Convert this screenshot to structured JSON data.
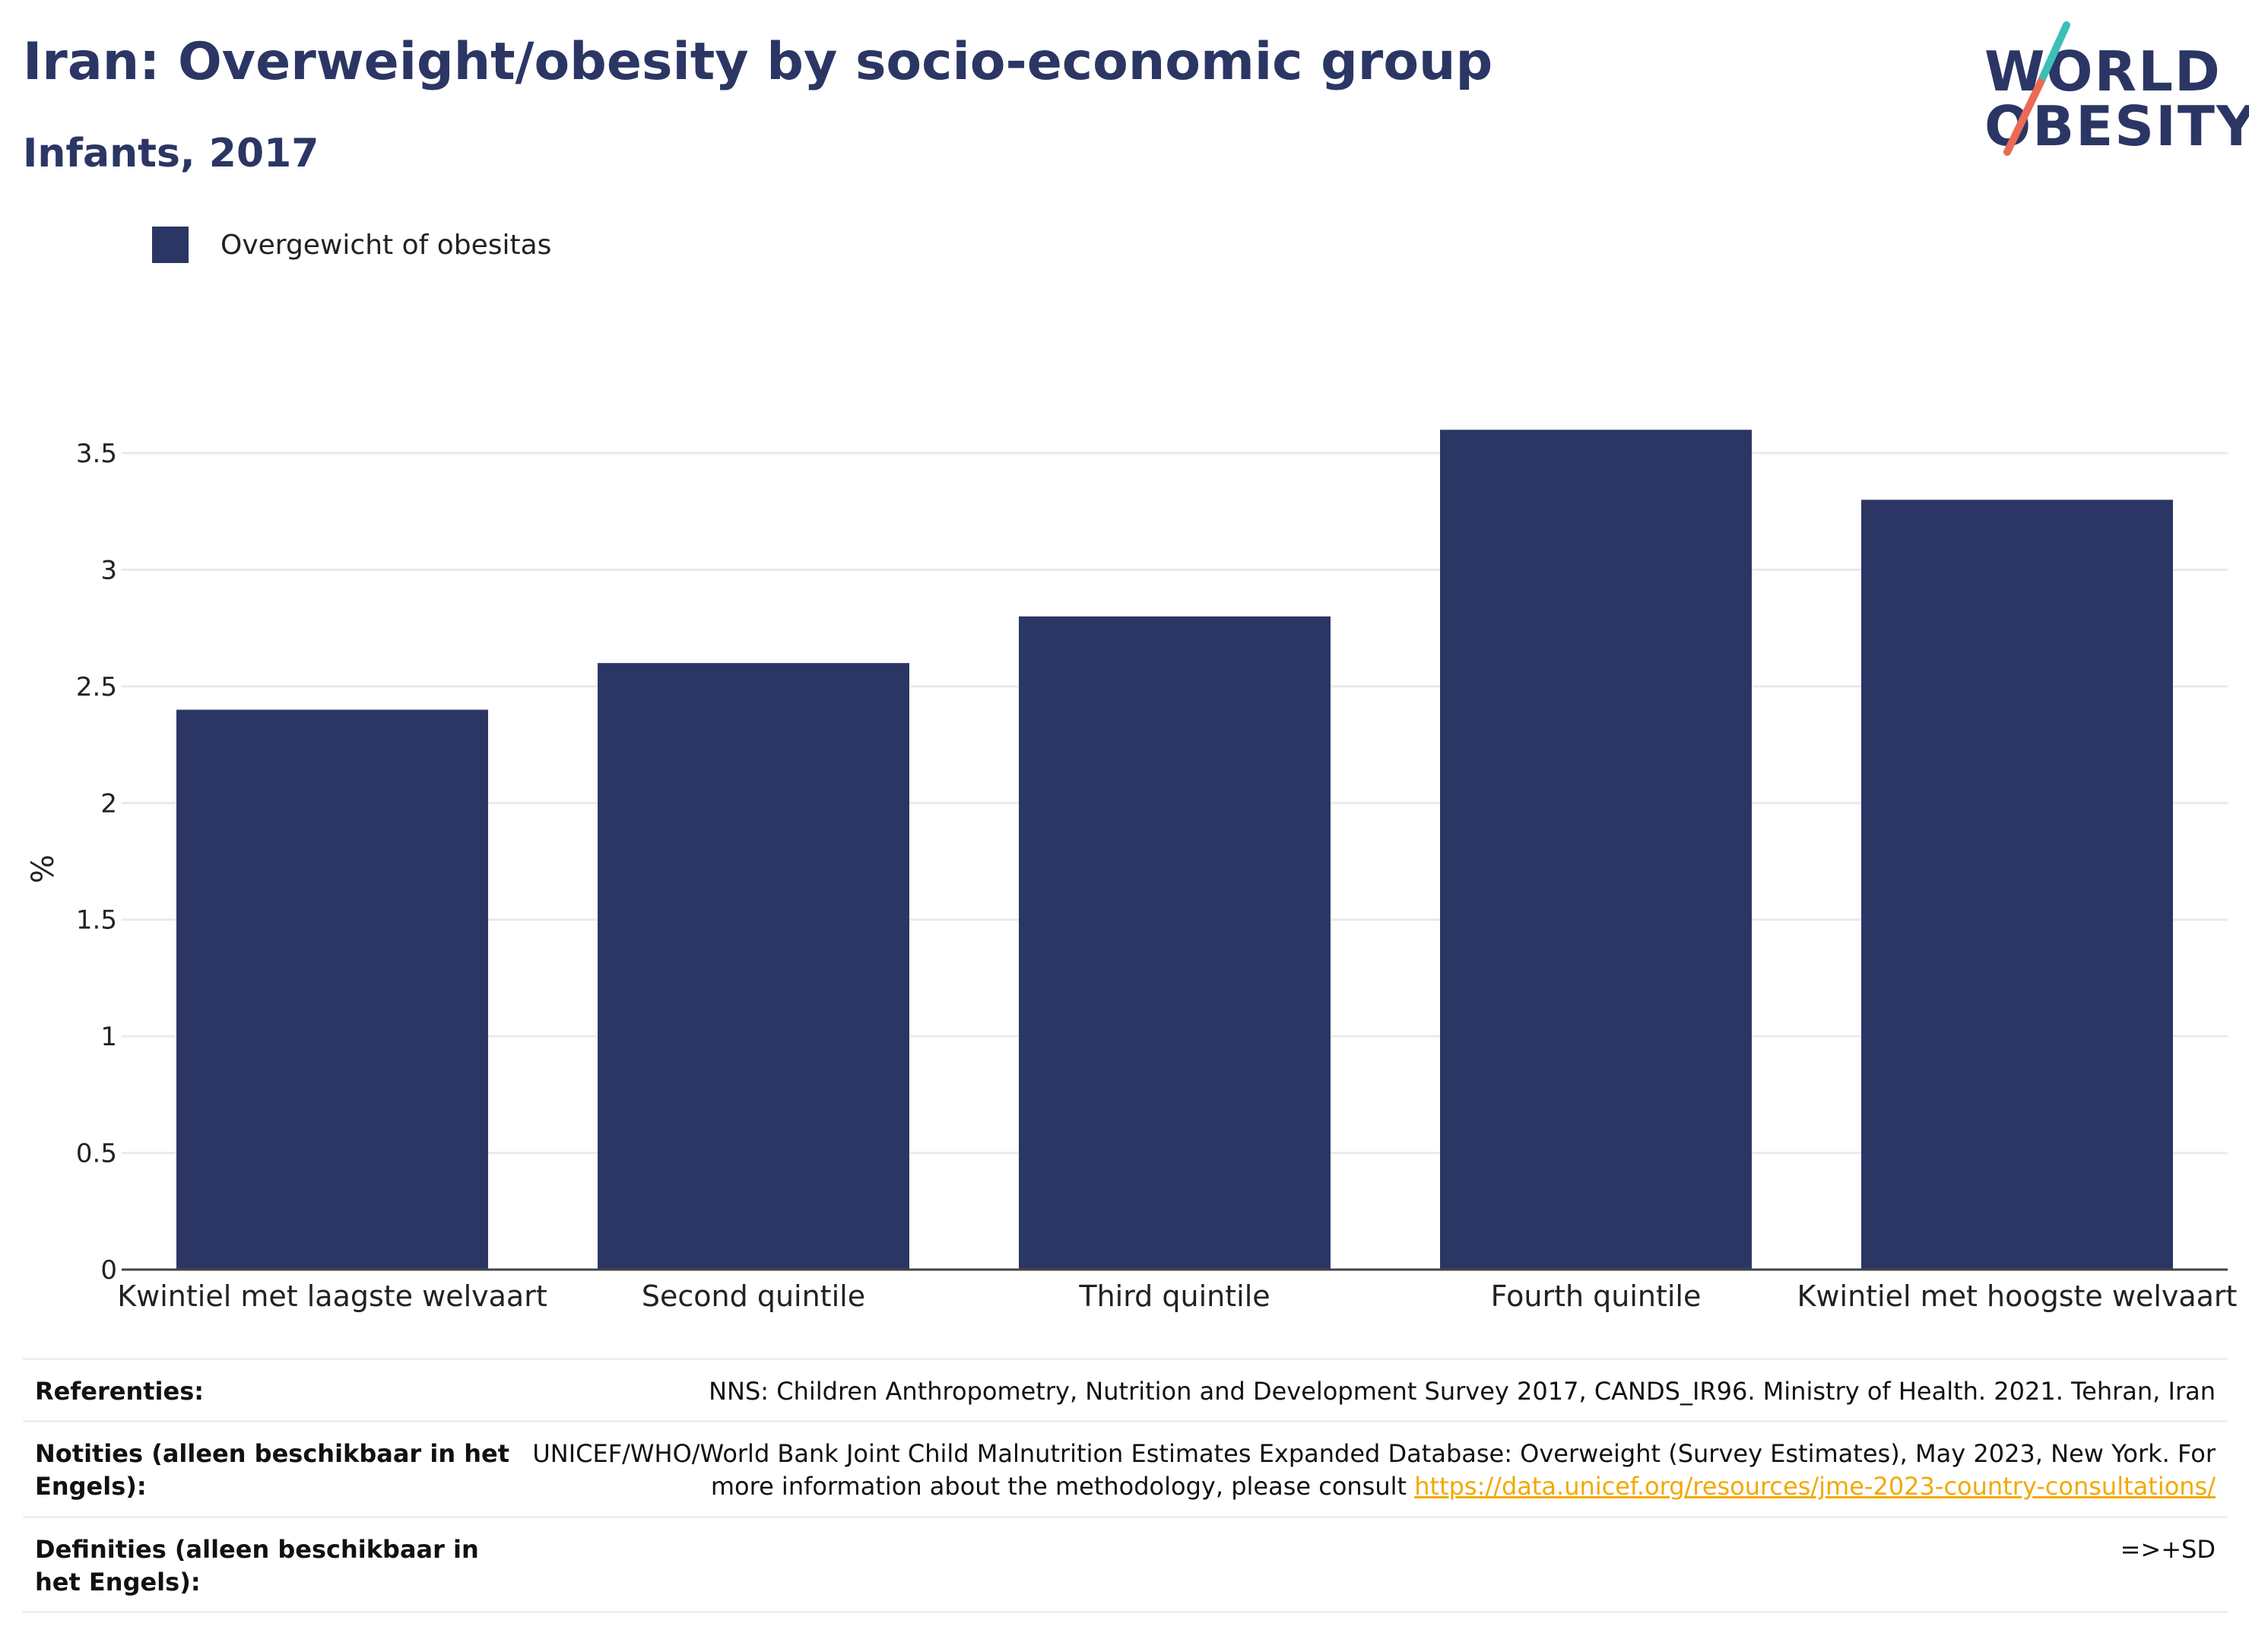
{
  "header": {
    "title": "Iran: Overweight/obesity by socio-economic group",
    "subtitle": "Infants, 2017"
  },
  "logo": {
    "line1": "WORLD",
    "line2": "OBESITY",
    "accent_teal": "#3bbfb8",
    "accent_coral": "#ea6a55"
  },
  "colors": {
    "bar": "#2b3664",
    "grid": "#e8eaf0",
    "axis": "#444444",
    "link": "#f2a900"
  },
  "chart_data": {
    "type": "bar",
    "categories": [
      "Kwintiel met laagste welvaart",
      "Second quintile",
      "Third quintile",
      "Fourth quintile",
      "Kwintiel met hoogste welvaart"
    ],
    "series": [
      {
        "name": "Overgewicht of obesitas",
        "values": [
          2.4,
          2.6,
          2.8,
          3.6,
          3.3
        ]
      }
    ],
    "ylabel": "%",
    "xlabel": "",
    "ylim": [
      0,
      3.5
    ],
    "yticks": [
      "0",
      "0.5",
      "1",
      "1.5",
      "2",
      "2.5",
      "3",
      "3.5"
    ],
    "legend_position": "top-left",
    "grid": true
  },
  "references": [
    {
      "label": "Referenties:",
      "value": "NNS: Children Anthropometry, Nutrition and Development Survey 2017, CANDS_IR96. Ministry of Health. 2021. Tehran, Iran"
    },
    {
      "label": "Notities (alleen beschikbaar in het Engels):",
      "value": "UNICEF/WHO/World Bank Joint Child Malnutrition Estimates Expanded Database: Overweight (Survey Estimates), May 2023, New York. For more information about the methodology, please consult ",
      "link": "https://data.unicef.org/resources/jme-2023-country-consultations/"
    },
    {
      "label": "Definities (alleen beschikbaar in het Engels):",
      "value": "=>+SD"
    }
  ]
}
